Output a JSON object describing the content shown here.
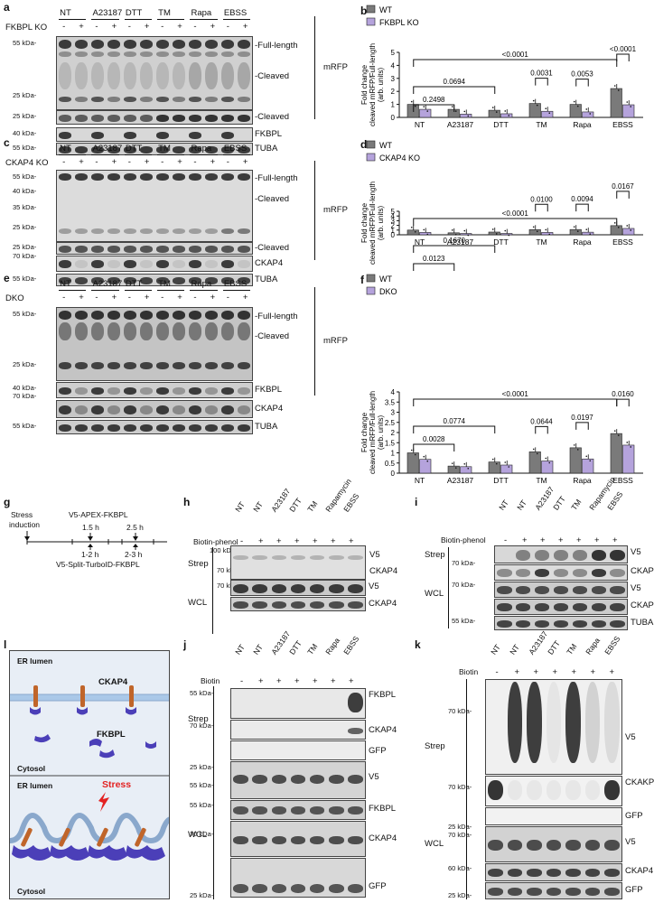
{
  "panels": {
    "a": "a",
    "b": "b",
    "c": "c",
    "d": "d",
    "e": "e",
    "f": "f",
    "g": "g",
    "h": "h",
    "i": "i",
    "j": "j",
    "k": "k",
    "l": "l"
  },
  "treatments": [
    "NT",
    "A23187",
    "DTT",
    "TM",
    "Rapa",
    "EBSS"
  ],
  "pm": [
    "-",
    "+"
  ],
  "mw": {
    "k55": "55 kDa-",
    "k40": "40 kDa-",
    "k35": "35 kDa-",
    "k25": "25 kDa-",
    "k70": "70 kDa-",
    "k100": "100 kDa-",
    "k60": "60 kDa-"
  },
  "labels": {
    "full": "-Full-length",
    "cleaved": "-Cleaved",
    "mrfp": "mRFP",
    "fkbpl": "FKBPL",
    "tuba": "TUBA",
    "ckap4": "CKAP4",
    "v5": "V5",
    "gfp": "GFP",
    "ckakp4": "CKAKP4",
    "strep": "Strep",
    "wcl": "WCL",
    "biotin_phenol": "Biotin-phenol",
    "biotin": "Biotin",
    "fkbpl_ko": "FKBPL KO",
    "ckap4_ko": "CKAP4 KO",
    "dko": "DKO",
    "wt": "WT"
  },
  "ylabel": [
    "Fold change",
    "cleaved mRFP/Full-length",
    "(arb. units)"
  ],
  "xcats": [
    "NT",
    "A23187",
    "DTT",
    "TM",
    "Rapa",
    "EBSS"
  ],
  "g": {
    "stress": "Stress",
    "induction": "induction",
    "apex": "V5-APEX-FKBPL",
    "t1": "1.5 h",
    "t2": "2.5 h",
    "r1": "1-2 h",
    "r2": "2-3 h",
    "turbo": "V5-Split-TurboID-FKBPL"
  },
  "h_lanes": [
    "NT",
    "NT",
    "A23187",
    "DTT",
    "TM",
    "Rapamycin",
    "EBSS"
  ],
  "h_pm": [
    "-",
    "+",
    "+",
    "+",
    "+",
    "+",
    "+"
  ],
  "j_lanes": [
    "NT",
    "NT",
    "A23187",
    "DTT",
    "TM",
    "Rapa",
    "EBSS"
  ],
  "l": {
    "er": "ER lumen",
    "ckap4": "CKAP4",
    "fkbpl": "FKBPL",
    "cytosol": "Cytosol",
    "stress": "Stress"
  },
  "chart_data": [
    {
      "type": "bar",
      "panel": "b",
      "categories": [
        "NT",
        "A23187",
        "DTT",
        "TM",
        "Rapa",
        "EBSS"
      ],
      "series": [
        {
          "name": "WT",
          "values": [
            1.0,
            0.62,
            0.55,
            1.07,
            1.0,
            2.22
          ],
          "color": "#7a7a7a"
        },
        {
          "name": "FKBPL KO",
          "values": [
            0.62,
            0.25,
            0.28,
            0.47,
            0.42,
            0.97
          ],
          "color": "#b5a3dc"
        }
      ],
      "ylabel": "Fold change cleaved mRFP/Full-length (arb. units)",
      "ylim": [
        0,
        5
      ],
      "yticks": [
        0,
        1,
        2,
        3,
        4,
        5
      ],
      "annotations": [
        {
          "text": "0.2498",
          "from": 0,
          "to": 1
        },
        {
          "text": "0.0694",
          "from": 0,
          "to": 2
        },
        {
          "text": "0.0031",
          "from": 3,
          "to": 3
        },
        {
          "text": "0.0053",
          "from": 4,
          "to": 4
        },
        {
          "text": "<0.0001",
          "from": 5,
          "to": 5
        },
        {
          "text": "<0.0001",
          "from": 0,
          "to": 5
        }
      ]
    },
    {
      "type": "bar",
      "panel": "d",
      "categories": [
        "NT",
        "A23187",
        "DTT",
        "TM",
        "Rapa",
        "EBSS"
      ],
      "series": [
        {
          "name": "WT",
          "values": [
            1.0,
            0.42,
            0.58,
            1.1,
            1.12,
            1.95
          ],
          "color": "#7a7a7a"
        },
        {
          "name": "CKAP4 KO",
          "values": [
            0.5,
            0.28,
            0.28,
            0.5,
            0.55,
            1.35
          ],
          "color": "#b5a3dc"
        }
      ],
      "ylabel": "Fold change cleaved mRFP/Full-length (arb. units)",
      "ylim": [
        0,
        5
      ],
      "yticks": [
        0,
        1,
        2,
        3,
        4,
        5
      ],
      "annotations": [
        {
          "text": "0.0123",
          "from": 0,
          "to": 1
        },
        {
          "text": "0.1670",
          "from": 0,
          "to": 2
        },
        {
          "text": "0.0100",
          "from": 3,
          "to": 3
        },
        {
          "text": "0.0094",
          "from": 4,
          "to": 4
        },
        {
          "text": "0.0167",
          "from": 5,
          "to": 5
        },
        {
          "text": "<0.0001",
          "from": 0,
          "to": 5
        }
      ]
    },
    {
      "type": "bar",
      "panel": "f",
      "categories": [
        "NT",
        "A23187",
        "DTT",
        "TM",
        "Rapa",
        "EBSS"
      ],
      "series": [
        {
          "name": "WT",
          "values": [
            1.0,
            0.35,
            0.55,
            1.05,
            1.25,
            1.95
          ],
          "color": "#7a7a7a"
        },
        {
          "name": "DKO",
          "values": [
            0.68,
            0.32,
            0.4,
            0.6,
            0.7,
            1.38
          ],
          "color": "#b5a3dc"
        }
      ],
      "ylabel": "Fold change cleaved mRFP/Full-length (arb. units)",
      "ylim": [
        0,
        4
      ],
      "yticks": [
        0,
        0.5,
        1.0,
        1.5,
        2.0,
        2.5,
        3.0,
        3.5,
        4.0
      ],
      "annotations": [
        {
          "text": "0.0028",
          "from": 0,
          "to": 1
        },
        {
          "text": "0.0774",
          "from": 0,
          "to": 2
        },
        {
          "text": "0.0644",
          "from": 3,
          "to": 3
        },
        {
          "text": "0.0197",
          "from": 4,
          "to": 4
        },
        {
          "text": "0.0160",
          "from": 5,
          "to": 5
        },
        {
          "text": "<0.0001",
          "from": 0,
          "to": 5
        }
      ]
    }
  ]
}
